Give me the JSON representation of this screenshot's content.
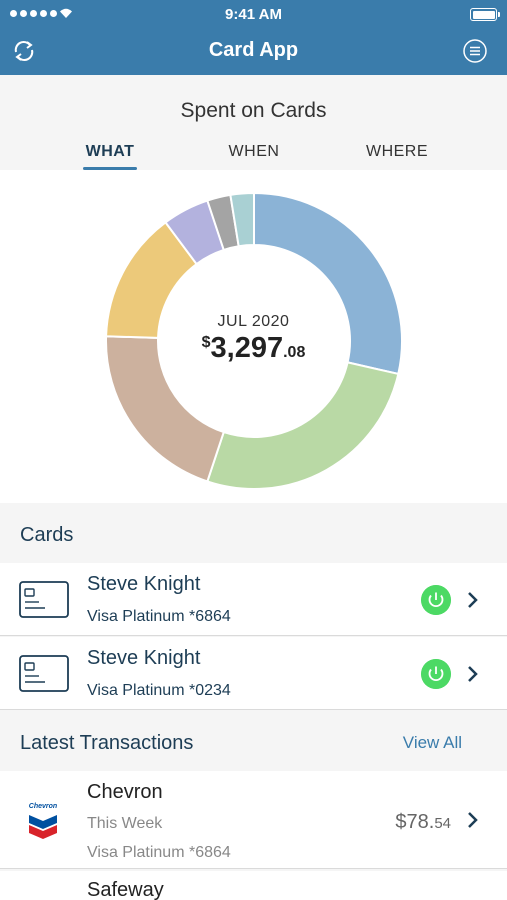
{
  "status_bar": {
    "time": "9:41 AM"
  },
  "nav": {
    "title": "Card App",
    "left_icon": "refresh-icon",
    "right_icon": "menu-icon"
  },
  "summary": {
    "heading": "Spent on Cards",
    "tabs": [
      {
        "label": "WHAT",
        "active": true
      },
      {
        "label": "WHEN",
        "active": false
      },
      {
        "label": "WHERE",
        "active": false
      }
    ]
  },
  "chart_data": {
    "type": "pie",
    "title": "",
    "center_label": "JUL 2020",
    "center_currency": "$",
    "center_amount": "3,297",
    "center_cents": ".08",
    "slices": [
      {
        "value": 28.0,
        "color": "#8bb3d6"
      },
      {
        "value": 26.0,
        "color": "#b9d9a5"
      },
      {
        "value": 20.0,
        "color": "#ccb19e"
      },
      {
        "value": 14.0,
        "color": "#ecc97a"
      },
      {
        "value": 5.0,
        "color": "#b3b2de"
      },
      {
        "value": 2.5,
        "color": "#a4a4a4"
      },
      {
        "value": 2.5,
        "color": "#a9d0d3"
      }
    ]
  },
  "cards_section": {
    "label": "Cards"
  },
  "cards": [
    {
      "holder": "Steve Knight",
      "card": "Visa Platinum *6864",
      "power_color": "#4cd964"
    },
    {
      "holder": "Steve Knight",
      "card": "Visa Platinum *0234",
      "power_color": "#4cd964"
    }
  ],
  "transactions_section": {
    "label": "Latest Transactions",
    "link": "View All"
  },
  "transactions": [
    {
      "merchant": "Chevron",
      "logo_text": "Chevron",
      "when": "This Week",
      "card": "Visa Platinum *6864",
      "amount": "$78.",
      "cents": "54"
    },
    {
      "merchant": "Safeway"
    }
  ]
}
